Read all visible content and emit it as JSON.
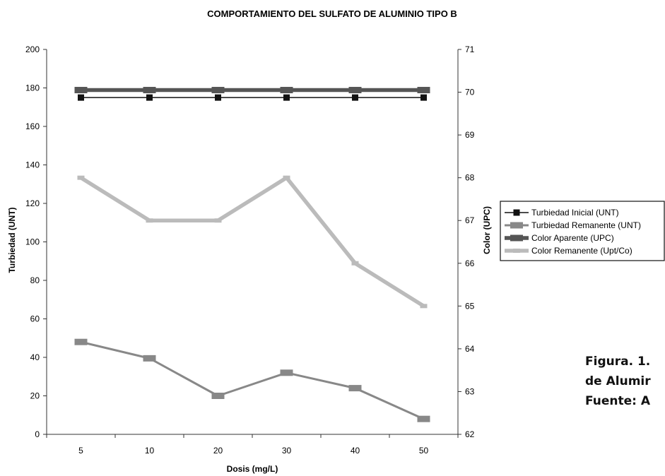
{
  "chart_data": {
    "type": "line",
    "title": "COMPORTAMIENTO DEL SULFATO DE ALUMINIO TIPO B",
    "xlabel": "Dosis (mg/L)",
    "ylabel": "Turbiedad (UNT)",
    "y2label": "Color (UPC)",
    "categories": [
      "5",
      "10",
      "20",
      "30",
      "40",
      "50"
    ],
    "ylim": [
      0,
      200
    ],
    "y2lim": [
      62,
      71
    ],
    "y_ticks": [
      "0",
      "20",
      "40",
      "60",
      "80",
      "100",
      "120",
      "140",
      "160",
      "180",
      "200"
    ],
    "y2_ticks": [
      "62",
      "63",
      "64",
      "65",
      "66",
      "67",
      "68",
      "69",
      "70",
      "71"
    ],
    "grid": false,
    "legend_position": "right",
    "series": [
      {
        "name": "Turbiedad Inicial (UNT)",
        "axis": "left",
        "color": "#111111",
        "values": [
          175,
          175,
          175,
          175,
          175,
          175
        ]
      },
      {
        "name": "Turbiedad Remanente (UNT)",
        "axis": "left",
        "color": "#888888",
        "values": [
          48,
          39.5,
          20,
          32,
          24,
          8
        ]
      },
      {
        "name": "Color Aparente (UPC)",
        "axis": "right",
        "color": "#555555",
        "values": [
          70.05,
          70.05,
          70.05,
          70.05,
          70.05,
          70.05
        ]
      },
      {
        "name": "Color Remanente (Upt/Co)",
        "axis": "right",
        "color": "#bbbbbb",
        "values": [
          68,
          67,
          67,
          68,
          66,
          65
        ]
      }
    ]
  },
  "caption": {
    "line1": "Figura. 1.",
    "line2": "de Alumir",
    "line3": "Fuente: A"
  }
}
